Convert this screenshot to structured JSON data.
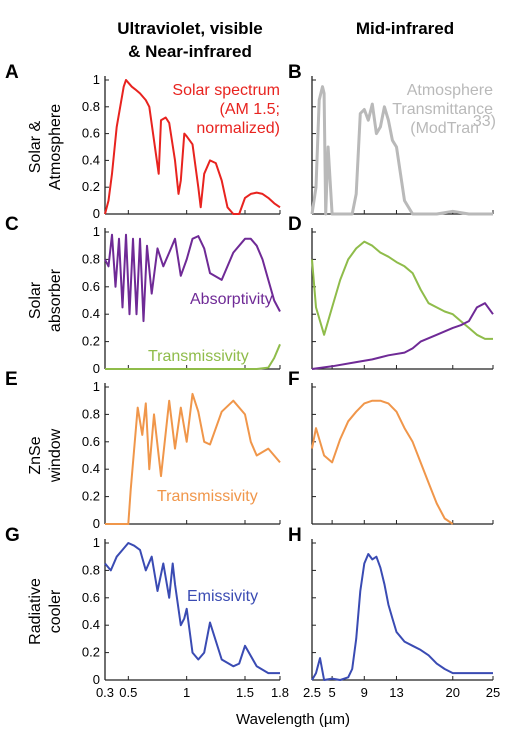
{
  "column_titles": {
    "left_line1": "Ultraviolet, visible",
    "left_line2": "& Near-infrared",
    "right": "Mid-infrared"
  },
  "x_label": "Wavelength (µm)",
  "x_ticks_left": [
    "0.3",
    "0.5",
    "1",
    "1.5",
    "1.8"
  ],
  "x_ticks_left_values": [
    0.3,
    0.5,
    1.0,
    1.5,
    1.8
  ],
  "x_ticks_right": [
    "2.5",
    "5",
    "9",
    "13",
    "20",
    "25"
  ],
  "x_ticks_right_values": [
    2.5,
    5,
    9,
    13,
    20,
    25
  ],
  "y_ticks": [
    "0",
    "0.2",
    "0.4",
    "0.6",
    "0.8",
    "1"
  ],
  "chart_data": [
    {
      "panel": "A",
      "type": "line",
      "row_label_1": "Solar &",
      "row_label_2": "Atmosphere",
      "xlim": [
        0.3,
        1.8
      ],
      "ylim": [
        0,
        1
      ],
      "annotation": [
        "Solar spectrum",
        "(AM 1.5;",
        "normalized)"
      ],
      "series": [
        {
          "color": "#e8231f",
          "x": [
            0.3,
            0.33,
            0.36,
            0.4,
            0.43,
            0.46,
            0.48,
            0.5,
            0.53,
            0.56,
            0.6,
            0.65,
            0.68,
            0.72,
            0.76,
            0.78,
            0.82,
            0.85,
            0.9,
            0.93,
            0.95,
            0.98,
            1.0,
            1.05,
            1.1,
            1.12,
            1.15,
            1.2,
            1.25,
            1.3,
            1.35,
            1.4,
            1.45,
            1.5,
            1.55,
            1.6,
            1.65,
            1.7,
            1.75,
            1.8
          ],
          "y": [
            0.0,
            0.1,
            0.3,
            0.65,
            0.8,
            0.95,
            1.0,
            0.98,
            0.95,
            0.93,
            0.9,
            0.85,
            0.8,
            0.55,
            0.3,
            0.7,
            0.72,
            0.68,
            0.4,
            0.15,
            0.25,
            0.6,
            0.58,
            0.52,
            0.2,
            0.05,
            0.3,
            0.4,
            0.38,
            0.25,
            0.05,
            0.0,
            0.0,
            0.12,
            0.15,
            0.16,
            0.15,
            0.12,
            0.08,
            0.05
          ]
        }
      ]
    },
    {
      "panel": "B",
      "type": "line",
      "xlim": [
        2.5,
        25
      ],
      "ylim": [
        0,
        1
      ],
      "annotation": [
        "Atmosphere",
        "Transmittance",
        "(ModTran"
      ],
      "annotation_sup": "33)",
      "series": [
        {
          "color": "#b9b9b9",
          "x": [
            2.5,
            3.0,
            3.4,
            3.8,
            4.0,
            4.2,
            4.5,
            5.0,
            5.5,
            6.0,
            7.0,
            7.5,
            8.0,
            8.5,
            9.0,
            9.5,
            10.0,
            10.5,
            11.0,
            11.5,
            12.0,
            12.5,
            13.0,
            13.5,
            14.0,
            15.0,
            16.0,
            18.0,
            20.0,
            22.0,
            25.0
          ],
          "y": [
            0.0,
            0.2,
            0.85,
            0.95,
            0.9,
            0.0,
            0.5,
            0.0,
            0.0,
            0.0,
            0.0,
            0.0,
            0.15,
            0.75,
            0.78,
            0.7,
            0.82,
            0.6,
            0.65,
            0.8,
            0.7,
            0.55,
            0.5,
            0.3,
            0.1,
            0.0,
            0.0,
            0.0,
            0.02,
            0.0,
            0.0
          ]
        }
      ]
    },
    {
      "panel": "C",
      "type": "line",
      "row_label_1": "Solar",
      "row_label_2": "absorber",
      "xlim": [
        0.3,
        1.8
      ],
      "ylim": [
        0,
        1
      ],
      "annotations": [
        {
          "text": "Absorptivity",
          "color": "#6f2a96"
        },
        {
          "text": "Transmissivity",
          "color": "#8fbc4a"
        }
      ],
      "series": [
        {
          "name": "Absorptivity",
          "color": "#6f2a96",
          "x": [
            0.3,
            0.33,
            0.36,
            0.39,
            0.42,
            0.45,
            0.48,
            0.51,
            0.54,
            0.57,
            0.6,
            0.63,
            0.66,
            0.7,
            0.75,
            0.8,
            0.85,
            0.9,
            0.95,
            1.0,
            1.05,
            1.1,
            1.15,
            1.2,
            1.3,
            1.4,
            1.5,
            1.55,
            1.6,
            1.65,
            1.7,
            1.75,
            1.8
          ],
          "y": [
            0.8,
            0.75,
            0.98,
            0.6,
            0.95,
            0.45,
            0.98,
            0.4,
            0.95,
            0.4,
            0.95,
            0.35,
            0.9,
            0.55,
            0.88,
            0.75,
            0.85,
            0.95,
            0.68,
            0.8,
            0.95,
            0.97,
            0.88,
            0.7,
            0.65,
            0.85,
            0.95,
            0.95,
            0.9,
            0.8,
            0.65,
            0.5,
            0.42
          ]
        },
        {
          "name": "Transmissivity",
          "color": "#8fbc4a",
          "x": [
            0.3,
            0.5,
            0.8,
            1.0,
            1.2,
            1.4,
            1.6,
            1.7,
            1.75,
            1.8
          ],
          "y": [
            0.0,
            0.0,
            0.0,
            0.0,
            0.0,
            0.0,
            0.0,
            0.01,
            0.08,
            0.18
          ]
        }
      ]
    },
    {
      "panel": "D",
      "type": "line",
      "xlim": [
        2.5,
        25
      ],
      "ylim": [
        0,
        1
      ],
      "series": [
        {
          "name": "Transmissivity",
          "color": "#8fbc4a",
          "x": [
            2.5,
            3.0,
            4.0,
            5.0,
            6.0,
            7.0,
            8.0,
            9.0,
            10.0,
            11.0,
            12.0,
            13.0,
            14.0,
            15.0,
            16.0,
            17.0,
            18.0,
            19.0,
            20.0,
            21.0,
            22.0,
            23.0,
            24.0,
            25.0
          ],
          "y": [
            0.8,
            0.45,
            0.25,
            0.45,
            0.65,
            0.8,
            0.88,
            0.93,
            0.9,
            0.85,
            0.82,
            0.78,
            0.75,
            0.7,
            0.58,
            0.48,
            0.45,
            0.42,
            0.4,
            0.35,
            0.3,
            0.25,
            0.22,
            0.22
          ]
        },
        {
          "name": "Absorptivity",
          "color": "#6f2a96",
          "x": [
            2.5,
            5.0,
            8.0,
            10.0,
            12.0,
            14.0,
            15.0,
            16.0,
            18.0,
            20.0,
            21.0,
            22.0,
            23.0,
            24.0,
            25.0
          ],
          "y": [
            0.0,
            0.02,
            0.05,
            0.07,
            0.1,
            0.12,
            0.15,
            0.2,
            0.25,
            0.3,
            0.32,
            0.35,
            0.45,
            0.48,
            0.4
          ]
        }
      ]
    },
    {
      "panel": "E",
      "type": "line",
      "row_label_1": "ZnSe",
      "row_label_2": "window",
      "xlim": [
        0.3,
        1.8
      ],
      "ylim": [
        0,
        1
      ],
      "annotation": [
        "Transmissivity"
      ],
      "series": [
        {
          "color": "#f0964a",
          "x": [
            0.3,
            0.45,
            0.5,
            0.52,
            0.55,
            0.58,
            0.62,
            0.65,
            0.68,
            0.72,
            0.78,
            0.85,
            0.9,
            0.95,
            1.0,
            1.05,
            1.1,
            1.15,
            1.2,
            1.3,
            1.4,
            1.5,
            1.55,
            1.6,
            1.7,
            1.8
          ],
          "y": [
            0.0,
            0.0,
            0.0,
            0.25,
            0.55,
            0.85,
            0.65,
            0.88,
            0.4,
            0.8,
            0.35,
            0.9,
            0.55,
            0.85,
            0.6,
            0.95,
            0.82,
            0.6,
            0.58,
            0.82,
            0.9,
            0.8,
            0.6,
            0.5,
            0.55,
            0.45
          ]
        }
      ]
    },
    {
      "panel": "F",
      "type": "line",
      "xlim": [
        2.5,
        25
      ],
      "ylim": [
        0,
        1
      ],
      "series": [
        {
          "color": "#f0964a",
          "x": [
            2.5,
            3.0,
            4.0,
            5.0,
            6.0,
            7.0,
            8.0,
            9.0,
            10.0,
            11.0,
            12.0,
            13.0,
            14.0,
            15.0,
            16.0,
            17.0,
            18.0,
            19.0,
            20.0
          ],
          "y": [
            0.55,
            0.7,
            0.5,
            0.45,
            0.62,
            0.75,
            0.82,
            0.88,
            0.9,
            0.9,
            0.88,
            0.82,
            0.7,
            0.6,
            0.45,
            0.3,
            0.15,
            0.04,
            0.0
          ]
        }
      ]
    },
    {
      "panel": "G",
      "type": "line",
      "row_label_1": "Radiative",
      "row_label_2": "cooler",
      "xlim": [
        0.3,
        1.8
      ],
      "ylim": [
        0,
        1
      ],
      "annotation": [
        "Emissivity"
      ],
      "series": [
        {
          "color": "#3a4bb3",
          "x": [
            0.3,
            0.35,
            0.4,
            0.45,
            0.5,
            0.55,
            0.6,
            0.65,
            0.7,
            0.75,
            0.8,
            0.85,
            0.88,
            0.9,
            0.95,
            0.98,
            1.0,
            1.05,
            1.1,
            1.15,
            1.2,
            1.3,
            1.4,
            1.45,
            1.5,
            1.6,
            1.7,
            1.8
          ],
          "y": [
            0.85,
            0.8,
            0.9,
            0.95,
            1.0,
            0.98,
            0.95,
            0.8,
            0.9,
            0.65,
            0.85,
            0.6,
            0.85,
            0.7,
            0.4,
            0.45,
            0.52,
            0.2,
            0.15,
            0.2,
            0.42,
            0.15,
            0.1,
            0.12,
            0.25,
            0.1,
            0.05,
            0.05
          ]
        }
      ]
    },
    {
      "panel": "H",
      "type": "line",
      "xlim": [
        2.5,
        25
      ],
      "ylim": [
        0,
        1
      ],
      "series": [
        {
          "color": "#3a4bb3",
          "x": [
            2.5,
            3.0,
            3.5,
            4.0,
            5.0,
            6.0,
            7.0,
            7.5,
            8.0,
            8.5,
            9.0,
            9.5,
            10.0,
            10.5,
            11.0,
            11.5,
            12.0,
            12.5,
            13.0,
            14.0,
            15.0,
            16.0,
            17.0,
            18.0,
            19.0,
            20.0,
            22.0,
            25.0
          ],
          "y": [
            0.0,
            0.05,
            0.16,
            0.0,
            0.01,
            0.0,
            0.02,
            0.08,
            0.3,
            0.65,
            0.85,
            0.92,
            0.88,
            0.9,
            0.82,
            0.7,
            0.55,
            0.45,
            0.35,
            0.28,
            0.25,
            0.22,
            0.18,
            0.12,
            0.08,
            0.05,
            0.05,
            0.05
          ]
        }
      ]
    }
  ]
}
